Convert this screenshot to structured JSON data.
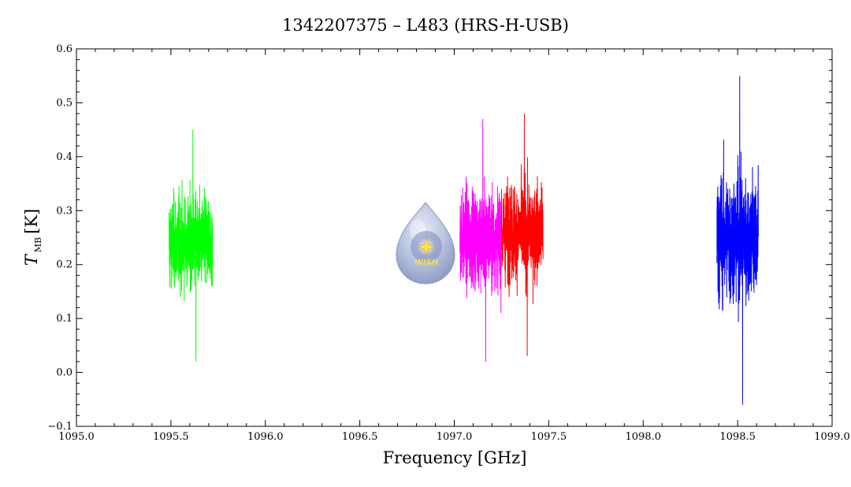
{
  "chart_data": {
    "type": "line",
    "title": "1342207375 – L483 (HRS-H-USB)",
    "xlabel": "Frequency [GHz]",
    "ylabel_main": "T",
    "ylabel_sub": "MB",
    "ylabel_unit": "[K]",
    "xlim": [
      1095.0,
      1099.0
    ],
    "ylim": [
      -0.1,
      0.6
    ],
    "x_ticks": [
      "1095.0",
      "1095.5",
      "1096.0",
      "1096.5",
      "1097.0",
      "1097.5",
      "1098.0",
      "1098.5",
      "1099.0"
    ],
    "y_ticks": [
      "−0.1",
      "0.0",
      "0.1",
      "0.2",
      "0.3",
      "0.4",
      "0.5",
      "0.6"
    ],
    "series": [
      {
        "color": "#00ff00",
        "x_range": [
          1095.49,
          1095.72
        ],
        "mean": 0.24,
        "min": 0.02,
        "max": 0.45
      },
      {
        "color": "#ff00ff",
        "x_range": [
          1097.03,
          1097.25
        ],
        "mean": 0.25,
        "min": 0.02,
        "max": 0.47
      },
      {
        "color": "#ff0000",
        "x_range": [
          1097.25,
          1097.47
        ],
        "mean": 0.26,
        "min": 0.03,
        "max": 0.48
      },
      {
        "color": "#0000ff",
        "x_range": [
          1098.39,
          1098.61
        ],
        "mean": 0.25,
        "min": -0.06,
        "max": 0.55
      }
    ],
    "logo": {
      "text": "WISH"
    }
  }
}
